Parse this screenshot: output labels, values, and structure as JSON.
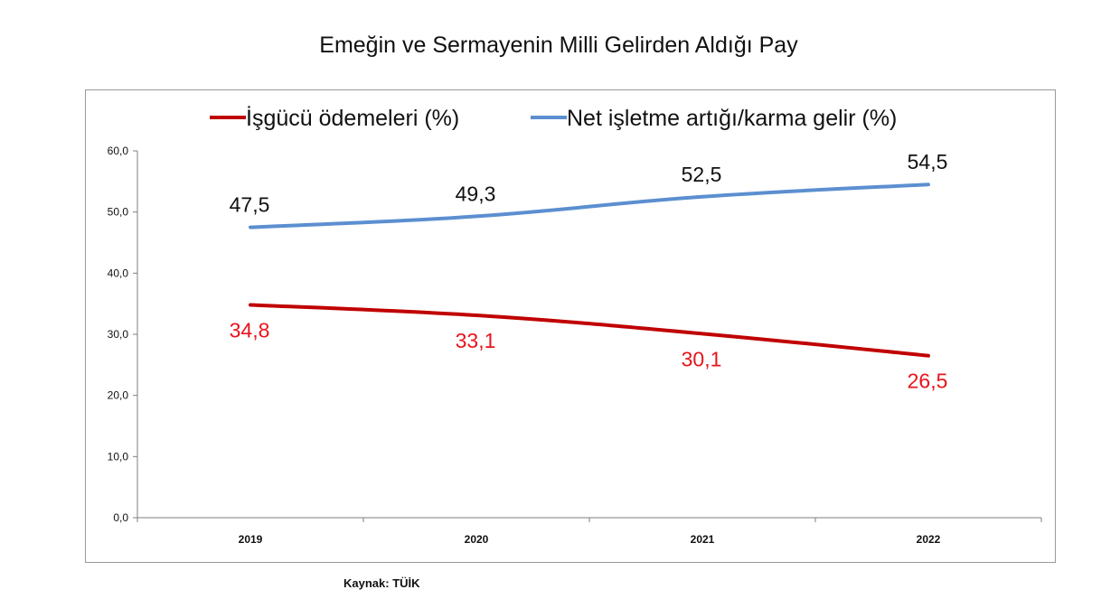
{
  "chart_title": "Emeğin ve Sermayenin Milli Gelirden Aldığı Pay",
  "source": "Kaynak: TÜİK",
  "chart_data": {
    "type": "line",
    "title": "Emeğin ve Sermayenin Milli Gelirden Aldığı Pay",
    "categories": [
      "2019",
      "2020",
      "2021",
      "2022"
    ],
    "series": [
      {
        "name": "İşgücü ödemeleri (%)",
        "values": [
          34.8,
          33.1,
          30.1,
          26.5
        ],
        "labels": [
          "34,8",
          "33,1",
          "30,1",
          "26,5"
        ],
        "color": "#c00000",
        "label_color": "#e8141c"
      },
      {
        "name": "Net işletme artığı/karma gelir (%)",
        "values": [
          47.5,
          49.3,
          52.5,
          54.5
        ],
        "labels": [
          "47,5",
          "49,3",
          "52,5",
          "54,5"
        ],
        "color": "#5b8fd0",
        "label_color": "#111111"
      }
    ],
    "y_ticks": [
      "0,0",
      "10,0",
      "20,0",
      "30,0",
      "40,0",
      "50,0",
      "60,0"
    ],
    "ylim": [
      0,
      60
    ],
    "grid": false,
    "legend_position": "top"
  }
}
